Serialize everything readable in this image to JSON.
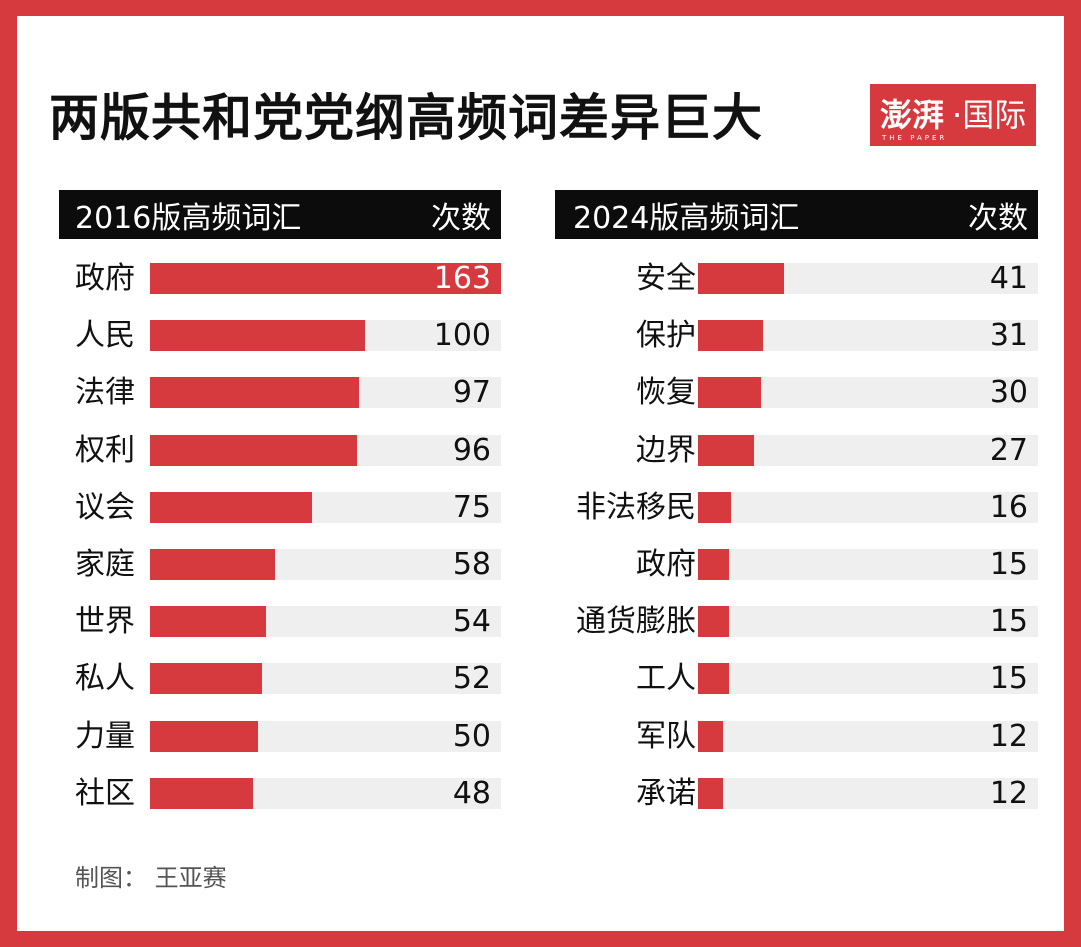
{
  "title": "两版共和党党纲高频词差异巨大",
  "logo": {
    "mark": "澎湃",
    "sub": "THE PAPER",
    "section": "·国际"
  },
  "colors": {
    "frame": "#d63a3e",
    "bar": "#d63a3e",
    "track": "#efefef",
    "header_bg": "#0c0c0c"
  },
  "chart_data": [
    {
      "type": "bar",
      "orientation": "horizontal",
      "category_header": "2016版高频词汇",
      "value_header": "次数",
      "categories": [
        "政府",
        "人民",
        "法律",
        "权利",
        "议会",
        "家庭",
        "世界",
        "私人",
        "力量",
        "社区"
      ],
      "values": [
        163,
        100,
        97,
        96,
        75,
        58,
        54,
        52,
        50,
        48
      ],
      "xlim": [
        0,
        163
      ]
    },
    {
      "type": "bar",
      "orientation": "horizontal",
      "category_header": "2024版高频词汇",
      "value_header": "次数",
      "categories": [
        "安全",
        "保护",
        "恢复",
        "边界",
        "非法移民",
        "政府",
        "通货膨胀",
        "工人",
        "军队",
        "承诺"
      ],
      "values": [
        41,
        31,
        30,
        27,
        16,
        15,
        15,
        15,
        12,
        12
      ],
      "xlim": [
        0,
        163
      ]
    }
  ],
  "credit": "制图：  王亚赛"
}
